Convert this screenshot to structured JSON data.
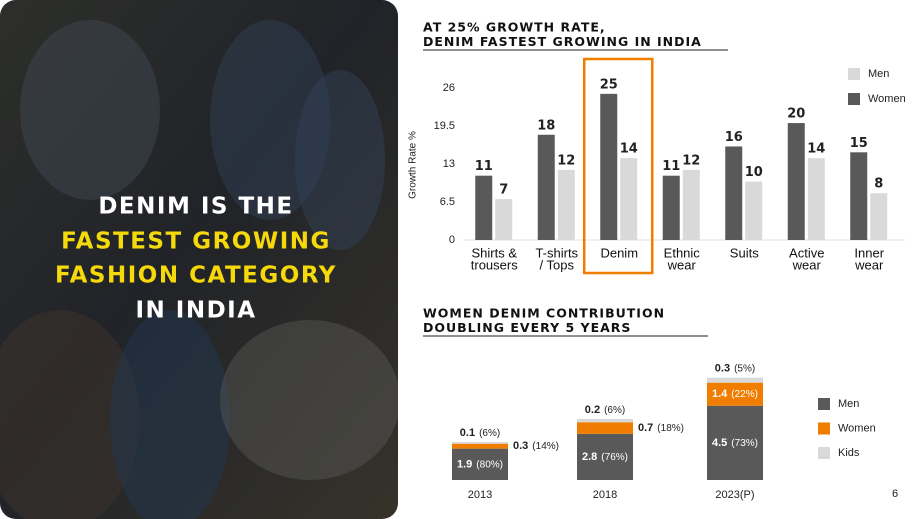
{
  "headline": [
    "DENIM IS THE",
    "FASTEST GROWING",
    "FASHION CATEGORY",
    "IN INDIA"
  ],
  "page_number": "6",
  "chart_data": [
    {
      "type": "bar",
      "title": [
        "AT 25% GROWTH RATE,",
        "DENIM FASTEST GROWING IN INDIA"
      ],
      "y_label": "Growth Rate %",
      "categories": [
        [
          "Shirts &",
          "trousers"
        ],
        [
          "T-shirts",
          "/ Tops"
        ],
        [
          "Denim"
        ],
        [
          "Ethnic",
          "wear"
        ],
        [
          "Suits"
        ],
        [
          "Active",
          "wear"
        ],
        [
          "Inner",
          "wear"
        ]
      ],
      "series": [
        {
          "name": "Women",
          "color": "#595959",
          "values": [
            11,
            18,
            25,
            11,
            16,
            20,
            15
          ]
        },
        {
          "name": "Men",
          "color": "#d9d9d9",
          "values": [
            7,
            12,
            14,
            12,
            10,
            14,
            8
          ]
        }
      ],
      "legend_order": [
        1,
        0
      ],
      "ylim": [
        0,
        26
      ],
      "yticks": [
        0,
        6.5,
        13,
        19.5,
        26
      ],
      "highlight": {
        "category": 2,
        "color": "#f07c00"
      }
    },
    {
      "type": "stacked_bar",
      "title": [
        "WOMEN DENIM CONTRIBUTION",
        "DOUBLING EVERY 5 YEARS"
      ],
      "categories": [
        "2013",
        "2018",
        "2023(P)"
      ],
      "series": [
        {
          "name": "Men",
          "color": "#595959",
          "values": [
            1.9,
            2.8,
            4.5
          ],
          "shares": [
            80,
            76,
            73
          ],
          "share_labels": [
            "(80%)",
            "(76%)",
            "(73%)"
          ]
        },
        {
          "name": "Women",
          "color": "#f07c00",
          "values": [
            0.3,
            0.7,
            1.4
          ],
          "shares": [
            14,
            18,
            22
          ],
          "share_labels": [
            "(14%)",
            "(18%)",
            "(22%)"
          ]
        },
        {
          "name": "Kids",
          "color": "#d9d9d9",
          "values": [
            0.1,
            0.2,
            0.3
          ],
          "shares": [
            6,
            6,
            5
          ],
          "share_labels": [
            "(6%)",
            "(6%)",
            "(5%)"
          ]
        }
      ]
    }
  ]
}
